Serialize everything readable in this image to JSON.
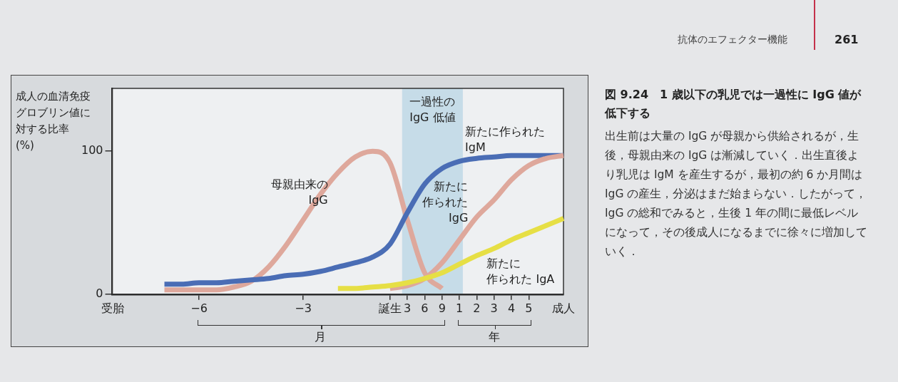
{
  "chart_data": {
    "type": "line",
    "title": "図 9.24　1 歳以下の乳児では一過性に IgG 値が低下する",
    "subtitle": "出生前は大量の IgG が母親から供給されるが，生後，母親由来の IgG は漸減していく．出生直後より乳児は IgM を産生するが，最初の約 6 か月間は IgG の産生，分泌はまだ始まらない．したがって，IgG の総和でみると，生後 1 年の間に最低レベルになって，その後成人になるまでに徐々に増加していく．",
    "ylabel": "成人の血清免疫グロブリン値に対する比率(%)",
    "annotations": [
      "月",
      "年",
      "抗体のエフェクター機能",
      "261"
    ],
    "categories": [
      "受胎",
      null,
      null,
      null,
      null,
      "−6",
      null,
      null,
      null,
      null,
      null,
      "−3",
      null,
      null,
      null,
      null,
      "誕生",
      "3",
      "6",
      "9",
      "1",
      "2",
      "3",
      "4",
      "5",
      null,
      "成人"
    ],
    "ylim": [
      0,
      144
    ],
    "yticks": [
      0,
      100
    ],
    "bands": [
      {
        "axis": "x",
        "from": "3",
        "to": "1",
        "label": "一過性のIgG 低値",
        "color": "#c6dce8"
      }
    ],
    "series": [
      {
        "name": "母親由来のIgG",
        "color": "#dea89c",
        "values": [
          null,
          null,
          null,
          3,
          3,
          3,
          3,
          5,
          9,
          19,
          34,
          52,
          70,
          85,
          96,
          100,
          92,
          52,
          15,
          4,
          null,
          null,
          null,
          null,
          null,
          null,
          null
        ]
      },
      {
        "name": "新たに作られたIgM",
        "color": "#4a6db5",
        "values": [
          null,
          null,
          null,
          7,
          7,
          8,
          8,
          9,
          10,
          11,
          13,
          14,
          16,
          19,
          22,
          26,
          35,
          57,
          77,
          88,
          93,
          95,
          96,
          97,
          97,
          97,
          97
        ]
      },
      {
        "name": "新たに作られたIgG",
        "color": "#dea89c",
        "values": [
          null,
          null,
          null,
          null,
          null,
          null,
          null,
          null,
          null,
          null,
          null,
          null,
          null,
          null,
          null,
          null,
          4,
          6,
          11,
          22,
          38,
          54,
          66,
          80,
          90,
          95,
          97
        ]
      },
      {
        "name": "新たに作られた IgA",
        "color": "#e6df45",
        "values": [
          null,
          null,
          null,
          null,
          null,
          null,
          null,
          null,
          null,
          null,
          null,
          null,
          null,
          4,
          4,
          5,
          6,
          8,
          11,
          15,
          21,
          27,
          32,
          38,
          43,
          48,
          53
        ]
      }
    ]
  }
}
